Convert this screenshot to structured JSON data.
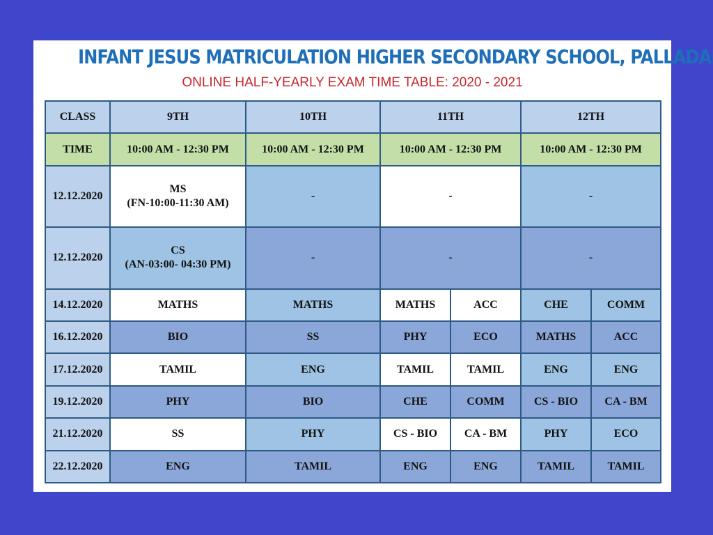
{
  "header": {
    "school": "INFANT JESUS MATRICULATION HIGHER SECONDARY SCHOOL, PALLADAM",
    "subtitle": "ONLINE HALF-YEARLY EXAM TIME TABLE: 2020 - 2021"
  },
  "table": {
    "class_label": "CLASS",
    "classes": [
      "9TH",
      "10TH",
      "11TH",
      "12TH"
    ],
    "time_label": "TIME",
    "times": [
      "10:00 AM - 12:30 PM",
      "10:00 AM - 12:30 PM",
      "10:00 AM - 12:30 PM",
      "10:00 AM - 12:30 PM"
    ],
    "rows": [
      {
        "date": "12.12.2020",
        "c9_line1": "MS",
        "c9_line2": "(FN-10:00-11:30 AM)",
        "c10": "-",
        "c11": "-",
        "c12": "-"
      },
      {
        "date": "12.12.2020",
        "c9_line1": "CS",
        "c9_line2": "(AN-03:00- 04:30 PM)",
        "c10": "-",
        "c11": "-",
        "c12": "-"
      },
      {
        "date": "14.12.2020",
        "c9": "MATHS",
        "c10": "MATHS",
        "c11a": "MATHS",
        "c11b": "ACC",
        "c12a": "CHE",
        "c12b": "COMM"
      },
      {
        "date": "16.12.2020",
        "c9": "BIO",
        "c10": "SS",
        "c11a": "PHY",
        "c11b": "ECO",
        "c12a": "MATHS",
        "c12b": "ACC"
      },
      {
        "date": "17.12.2020",
        "c9": "TAMIL",
        "c10": "ENG",
        "c11a": "TAMIL",
        "c11b": "TAMIL",
        "c12a": "ENG",
        "c12b": "ENG"
      },
      {
        "date": "19.12.2020",
        "c9": "PHY",
        "c10": "BIO",
        "c11a": "CHE",
        "c11b": "COMM",
        "c12a": "CS - BIO",
        "c12b": "CA - BM"
      },
      {
        "date": "21.12.2020",
        "c9": "SS",
        "c10": "PHY",
        "c11a": "CS - BIO",
        "c11b": "CA - BM",
        "c12a": "PHY",
        "c12b": "ECO"
      },
      {
        "date": "22.12.2020",
        "c9": "ENG",
        "c10": "TAMIL",
        "c11a": "ENG",
        "c11b": "ENG",
        "c12a": "TAMIL",
        "c12b": "TAMIL"
      }
    ]
  }
}
